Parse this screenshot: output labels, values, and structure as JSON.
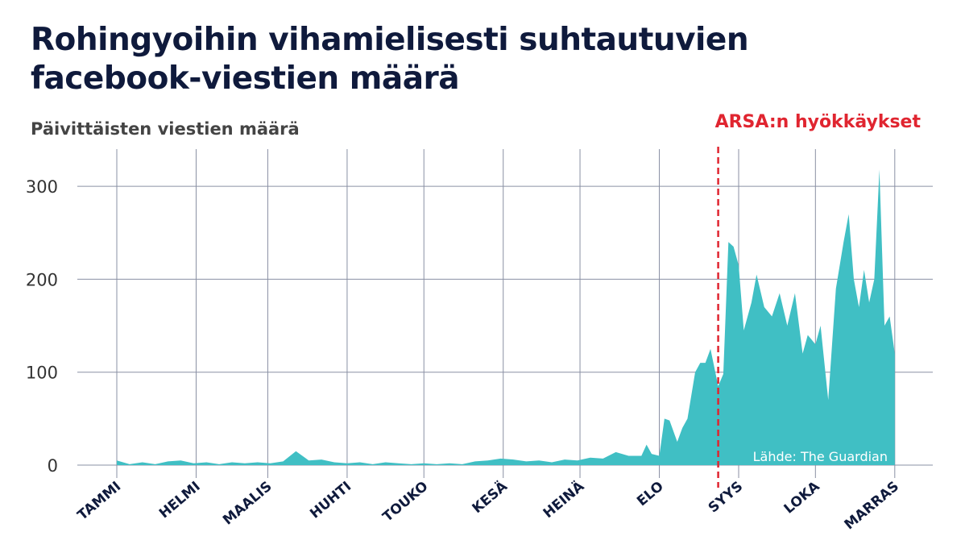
{
  "chart_data": {
    "type": "area",
    "title": "Rohingyoihin vihamielisesti suhtautuvien facebook-viestien määrä",
    "subtitle": "Päivittäisten viestien määrä",
    "source": "Lähde: The Guardian",
    "color": "#40bfc4",
    "annotation": {
      "label": "ARSA:n hyökkäykset",
      "x": 235,
      "color": "#e02530"
    },
    "x": [
      0,
      5,
      10,
      15,
      20,
      25,
      30,
      35,
      40,
      45,
      50,
      55,
      60,
      65,
      70,
      75,
      80,
      85,
      90,
      95,
      100,
      105,
      110,
      115,
      120,
      125,
      130,
      135,
      140,
      145,
      150,
      155,
      160,
      165,
      170,
      175,
      180,
      185,
      190,
      195,
      200,
      205,
      207,
      209,
      212,
      214,
      216,
      219,
      221,
      223,
      226,
      228,
      230,
      232,
      235,
      237,
      239,
      241,
      243,
      245,
      248,
      250,
      253,
      256,
      259,
      262,
      265,
      268,
      270,
      273,
      275,
      278,
      281,
      284,
      286,
      288,
      290,
      292,
      294,
      296,
      298,
      300,
      302,
      304
    ],
    "values": [
      5,
      1,
      3,
      1,
      4,
      5,
      2,
      3,
      1,
      3,
      2,
      3,
      2,
      4,
      15,
      5,
      6,
      3,
      2,
      3,
      1,
      3,
      2,
      1,
      2,
      1,
      2,
      1,
      4,
      5,
      7,
      6,
      4,
      5,
      3,
      6,
      5,
      8,
      7,
      14,
      10,
      10,
      22,
      12,
      10,
      50,
      48,
      25,
      40,
      50,
      100,
      110,
      110,
      125,
      85,
      98,
      240,
      235,
      215,
      145,
      175,
      205,
      170,
      160,
      185,
      150,
      185,
      120,
      140,
      130,
      150,
      70,
      190,
      240,
      270,
      200,
      170,
      210,
      175,
      200,
      318,
      150,
      160,
      120
    ],
    "xlim": [
      -5,
      318
    ],
    "xticks": [
      {
        "value": 0,
        "label": "TAMMI"
      },
      {
        "value": 31,
        "label": "HELMI"
      },
      {
        "value": 59,
        "label": "MAALIS"
      },
      {
        "value": 90,
        "label": "HUHTI"
      },
      {
        "value": 120,
        "label": "TOUKO"
      },
      {
        "value": 151,
        "label": "KESÄ"
      },
      {
        "value": 181,
        "label": "HEINÄ"
      },
      {
        "value": 212,
        "label": "ELO"
      },
      {
        "value": 243,
        "label": "SYYS"
      },
      {
        "value": 273,
        "label": "LOKA"
      },
      {
        "value": 304,
        "label": "MARRAS"
      }
    ],
    "ylim": [
      0,
      340
    ],
    "yticks": [
      0,
      100,
      200,
      300
    ],
    "grid": true
  }
}
